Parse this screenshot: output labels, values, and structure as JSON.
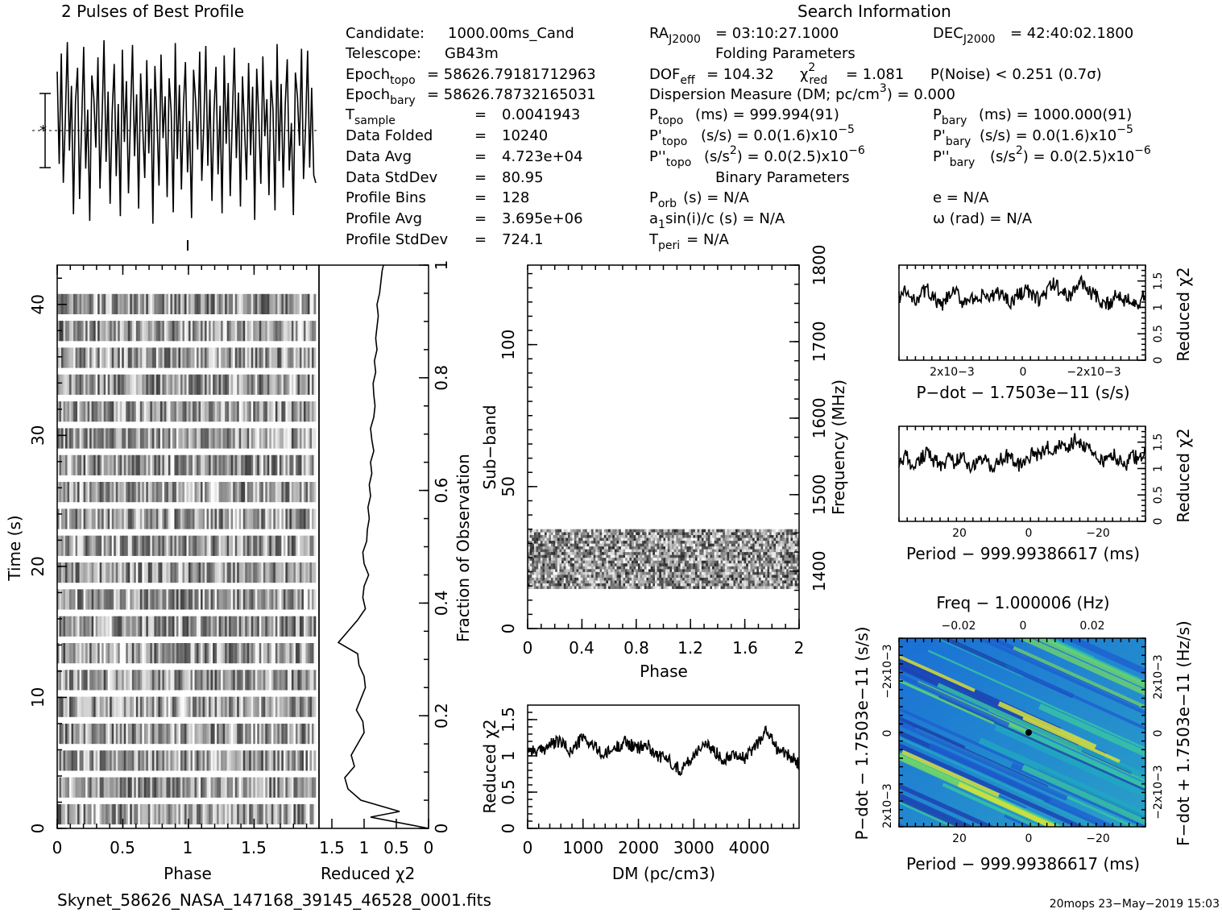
{
  "header": {
    "profile_title": "2 Pulses of Best Profile",
    "search_title": "Search Information",
    "folding_title": "Folding Parameters",
    "binary_title": "Binary Parameters"
  },
  "info": {
    "candidate_label": "Candidate:",
    "candidate": "1000.00ms_Cand",
    "telescope_label": "Telescope:",
    "telescope": "GB43m",
    "epoch_topo_main": "Epoch",
    "epoch_topo_sub": "topo",
    "epoch_topo": "= 58626.79181712963",
    "epoch_bary_main": "Epoch",
    "epoch_bary_sub": "bary",
    "epoch_bary": "= 58626.78732165031",
    "tsample_main": "T",
    "tsample_sub": "sample",
    "tsample": "0.0041943",
    "data_folded_label": "Data Folded",
    "data_folded": "10240",
    "data_avg_label": "Data Avg",
    "data_avg": "4.723e+04",
    "data_std_label": "Data StdDev",
    "data_std": "80.95",
    "profile_bins_label": "Profile Bins",
    "profile_bins": "128",
    "profile_avg_label": "Profile Avg",
    "profile_avg": "3.695e+06",
    "profile_std_label": "Profile StdDev",
    "profile_std": "724.1",
    "equals": "="
  },
  "search": {
    "ra_main": "RA",
    "ra_sub": "J2000",
    "ra": "= 03:10:27.1000",
    "dec_main": "DEC",
    "dec_sub": "J2000",
    "dec": "= 42:40:02.1800",
    "dof_main": "DOF",
    "dof_sub": "eff",
    "dof": "= 104.32",
    "chi_main": "χ",
    "chi_sup": "2",
    "chi_sub": "red",
    "chi": "= 1.081",
    "pnoise": "P(Noise) < 0.251   (0.7σ)",
    "dm_line": "Dispersion Measure (DM; pc/cm",
    "dm_sup": "3",
    "dm_tail": ") = 0.000",
    "ptopo_main": "P",
    "ptopo_sub": "topo",
    "ptopo": "(ms) =  999.994(91)",
    "pbary_main": "P",
    "pbary_sub": "bary",
    "pbary": "(ms) =  1000.000(91)",
    "pdtopo_main": "P'",
    "pdtopo_sub": "topo",
    "pdtopo": "(s/s) = 0.0(1.6)x10",
    "pdtopo_exp": "−5",
    "pdbary_main": "P'",
    "pdbary_sub": "bary",
    "pdbary": "(s/s) = 0.0(1.6)x10",
    "pdbary_exp": "−5",
    "pddtopo_main": "P''",
    "pddtopo_sub": "topo",
    "pddtopo_a": "(s/s",
    "pddtopo_sup": "2",
    "pddtopo_b": ") = 0.0(2.5)x10",
    "pddtopo_exp": "−6",
    "pddbary_main": "P''",
    "pddbary_sub": "bary",
    "pddbary_a": "(s/s",
    "pddbary_sup": "2",
    "pddbary_b": ") = 0.0(2.5)x10",
    "pddbary_exp": "−6",
    "porb_main": "P",
    "porb_sub": "orb",
    "porb": "(s) = N/A",
    "e": "e = N/A",
    "a1_a": "a",
    "a1_sub": "1",
    "a1_b": "sin(i)/c (s) = N/A",
    "omega": "ω (rad) = N/A",
    "tperi_main": "T",
    "tperi_sub": "peri",
    "tperi": "= N/A"
  },
  "footer": {
    "filename": "Skynet_58626_NASA_147168_39145_46528_0001.fits",
    "stamp": "20mops 23−May−2019 15:03"
  },
  "chart_data": [
    {
      "type": "line",
      "id": "profile",
      "title": "2 Pulses of Best Profile",
      "x": "phase 0–2 (2 × 128 bins)",
      "values": [
        0.62,
        -0.35,
        0.81,
        -0.55,
        0.12,
        0.93,
        -0.21,
        0.47,
        -0.88,
        0.3,
        0.66,
        -0.72,
        0.05,
        0.88,
        -0.4,
        0.22,
        -0.95,
        0.58,
        0.34,
        -0.18,
        0.77,
        -0.61,
        0.09,
        0.95,
        -0.33,
        0.41,
        -0.77,
        0.18,
        0.7,
        -0.48,
        0.28,
        -0.9,
        0.85,
        -0.12,
        0.52,
        -0.66,
        0.15,
        0.9,
        -0.27,
        0.38,
        -0.82,
        0.6,
        0.02,
        -0.5,
        0.74,
        -0.24,
        0.44,
        -0.98,
        0.68,
        0.11,
        -0.58,
        0.8,
        -0.08,
        0.36,
        -0.7,
        0.55,
        0.2,
        -0.86,
        0.92,
        -0.3,
        0.48,
        -0.62,
        0.25,
        0.72,
        -0.44,
        0.1,
        -0.92,
        0.64,
        0.31,
        -0.2,
        0.83,
        -0.53,
        0.07,
        0.89,
        -0.37,
        0.43,
        -0.74,
        0.19,
        0.67,
        -0.46,
        0.26,
        -0.87,
        0.79,
        -0.14,
        0.5,
        -0.69,
        0.13,
        0.87,
        -0.29,
        0.4,
        -0.8,
        0.57,
        0.04,
        -0.52,
        0.71,
        -0.26,
        0.46,
        -0.94,
        0.65,
        0.14,
        -0.56,
        0.78,
        -0.06,
        0.33,
        -0.68,
        0.53,
        0.22,
        -0.84,
        0.91,
        -0.32,
        0.49,
        -0.6,
        0.27,
        0.75,
        -0.42,
        0.08,
        -0.89,
        0.61,
        0.35,
        -0.16,
        0.86,
        -0.51,
        0.06,
        0.84,
        -0.39,
        0.45,
        -0.47,
        -0.55
      ],
      "error_bar_label": "±σ"
    },
    {
      "type": "heatmap",
      "id": "time_phase",
      "xlabel": "Phase",
      "ylabel": "Time (s)",
      "xlim": [
        0,
        1.97
      ],
      "ylim": [
        0,
        43
      ],
      "xticks": [
        "0",
        "0.5",
        "1",
        "1.5"
      ],
      "yticks": [
        "0",
        "10",
        "20",
        "30",
        "40"
      ],
      "y_tick_values": [
        0,
        10,
        20,
        30,
        40
      ]
    },
    {
      "type": "line",
      "id": "time_chi2",
      "xlabel": "Reduced χ2",
      "right_label": "Fraction of Observation",
      "xlim": [
        1.7,
        0
      ],
      "ylim": [
        0,
        1
      ],
      "xticks": [
        "1.5",
        "1",
        "0.5",
        "0"
      ],
      "right_ticks": [
        "0",
        "0.2",
        "0.4",
        "0.6",
        "0.8",
        "1"
      ],
      "x": [
        0.0,
        0.02,
        0.03,
        0.05,
        0.07,
        0.09,
        0.11,
        0.13,
        0.15,
        0.17,
        0.19,
        0.21,
        0.23,
        0.25,
        0.27,
        0.29,
        0.31,
        0.33,
        0.35,
        0.37,
        0.39,
        0.41,
        0.43,
        0.45,
        0.47,
        0.49,
        0.51,
        0.53,
        0.55,
        0.57,
        0.59,
        0.61,
        0.63,
        0.65,
        0.67,
        0.69,
        0.71,
        0.73,
        0.75,
        0.77,
        0.79,
        0.81,
        0.83,
        0.85,
        0.87,
        0.89,
        0.91,
        0.93,
        0.95,
        0.97,
        0.99,
        1.0
      ],
      "values": [
        0.0,
        0.9,
        0.45,
        1.05,
        1.25,
        1.3,
        1.15,
        1.2,
        1.1,
        1.0,
        1.02,
        1.12,
        1.05,
        0.98,
        1.0,
        1.08,
        1.1,
        1.4,
        1.25,
        1.1,
        0.98,
        1.02,
        1.0,
        0.93,
        1.0,
        1.02,
        0.96,
        0.95,
        0.92,
        0.94,
        0.9,
        0.92,
        0.88,
        0.9,
        0.85,
        0.88,
        0.9,
        0.85,
        0.83,
        0.85,
        0.86,
        0.82,
        0.84,
        0.8,
        0.82,
        0.8,
        0.78,
        0.8,
        0.76,
        0.74,
        0.72,
        0.7
      ]
    },
    {
      "type": "heatmap",
      "id": "subband_phase",
      "xlabel": "Phase",
      "ylabel": "Sub−band",
      "right_label": "Frequency (MHz)",
      "xlim": [
        0,
        2
      ],
      "ylim": [
        0,
        128
      ],
      "band_rows": [
        14,
        35
      ],
      "xticks": [
        "0",
        "0.4",
        "0.8",
        "1.2",
        "1.6",
        "2"
      ],
      "yticks": [
        "0",
        "50",
        "100"
      ],
      "freq_ticks": [
        "1400",
        "1500",
        "1600",
        "1700",
        "1800"
      ],
      "freq_tick_values": [
        1400,
        1500,
        1600,
        1700,
        1800
      ],
      "freq_range": [
        1325,
        1800
      ]
    },
    {
      "type": "line",
      "id": "dm_chi2",
      "xlabel": "DM (pc/cm3)",
      "ylabel": "Reduced χ2",
      "xlim": [
        0,
        4900
      ],
      "ylim": [
        0,
        1.7
      ],
      "xticks": [
        "0",
        "1000",
        "2000",
        "3000",
        "4000"
      ],
      "yticks": [
        "0",
        "0.5",
        "1",
        "1.5"
      ],
      "x": [
        0,
        200,
        400,
        600,
        800,
        1000,
        1200,
        1400,
        1600,
        1800,
        2000,
        2200,
        2400,
        2600,
        2800,
        3000,
        3200,
        3400,
        3600,
        3800,
        4000,
        4200,
        4400,
        4600,
        4800,
        4900
      ],
      "values": [
        1.1,
        1.05,
        1.15,
        1.2,
        1.05,
        1.25,
        1.15,
        1.0,
        1.1,
        1.2,
        1.1,
        1.15,
        1.0,
        0.95,
        0.8,
        0.95,
        1.15,
        1.1,
        0.95,
        1.05,
        0.95,
        1.15,
        1.35,
        1.1,
        1.0,
        0.9
      ]
    },
    {
      "type": "line",
      "id": "pdot_chi2",
      "xlabel": "P−dot − 1.7503e−11 (s/s)",
      "ylabel": "Reduced χ2",
      "xticks": [
        "2x10−3",
        "0",
        "−2x10−3"
      ],
      "yticks": [
        "0",
        "0.5",
        "1",
        "1.5"
      ],
      "ylim": [
        0,
        1.8
      ],
      "values": [
        1.2,
        1.3,
        1.1,
        1.25,
        1.35,
        1.15,
        1.0,
        1.2,
        1.3,
        1.1,
        1.2,
        1.05,
        1.25,
        1.15,
        1.3,
        1.2,
        1.1,
        1.25,
        1.35,
        1.2,
        1.15,
        1.3,
        1.45,
        1.3,
        1.2,
        1.35,
        1.5,
        1.3,
        1.2,
        1.0,
        1.1,
        1.25,
        1.15,
        1.2,
        1.05,
        1.25
      ]
    },
    {
      "type": "line",
      "id": "period_chi2",
      "xlabel": "Period − 999.99386617 (ms)",
      "ylabel": "Reduced χ2",
      "xticks": [
        "20",
        "0",
        "−20"
      ],
      "yticks": [
        "0",
        "0.5",
        "1",
        "1.5"
      ],
      "ylim": [
        0,
        1.8
      ],
      "values": [
        1.1,
        1.25,
        1.0,
        1.2,
        1.3,
        1.15,
        1.05,
        1.2,
        1.1,
        1.25,
        1.0,
        1.15,
        1.2,
        1.05,
        1.1,
        1.25,
        1.2,
        1.05,
        1.1,
        1.3,
        1.25,
        1.4,
        1.3,
        1.45,
        1.35,
        1.55,
        1.4,
        1.35,
        1.2,
        1.1,
        1.3,
        1.2,
        1.0,
        1.25,
        1.2,
        1.35
      ]
    },
    {
      "type": "heatmap",
      "id": "p_pdot",
      "xlabel": "Period − 999.99386617 (ms)",
      "ylabel": "P−dot − 1.7503e−11 (s/s)",
      "top_label": "Freq − 1.000006 (Hz)",
      "right_label": "F−dot + 1.7503e−11 (Hz/s)",
      "xticks": [
        "20",
        "0",
        "−20"
      ],
      "top_ticks": [
        "−0.02",
        "0",
        "0.02"
      ],
      "left_ticks": [
        "2x10−3",
        "0",
        "−2x10−3"
      ],
      "right_ticks": [
        "−2x10−3",
        "0",
        "2x10−3"
      ]
    }
  ]
}
